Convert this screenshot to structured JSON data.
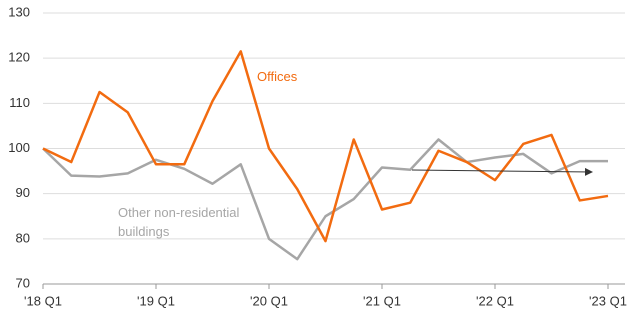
{
  "chart_data": {
    "type": "line",
    "categories": [
      "'18 Q1",
      null,
      null,
      null,
      "'19 Q1",
      null,
      null,
      null,
      "'20 Q1",
      null,
      null,
      null,
      "'21 Q1",
      null,
      null,
      null,
      "'22 Q1",
      null,
      null,
      null,
      "'23 Q1"
    ],
    "series": [
      {
        "name": "Offices",
        "color": "#f26b10",
        "values": [
          100,
          97,
          112.5,
          108,
          96.5,
          96.5,
          110.5,
          121.5,
          100,
          91,
          79.5,
          102,
          86.5,
          88,
          99.5,
          97,
          93,
          101,
          103,
          88.5,
          89.5
        ]
      },
      {
        "name": "Other non-residential buildings",
        "color": "#a6a6a6",
        "values": [
          100,
          94,
          93.8,
          94.5,
          97.5,
          95.5,
          92.2,
          96.5,
          80,
          75.5,
          85,
          88.8,
          95.8,
          95.3,
          102,
          97,
          98,
          98.8,
          94.5,
          97.2,
          97.2
        ]
      }
    ],
    "ylim": [
      70,
      130
    ],
    "yticks": [
      70,
      80,
      90,
      100,
      110,
      120,
      130
    ],
    "grid": true
  }
}
